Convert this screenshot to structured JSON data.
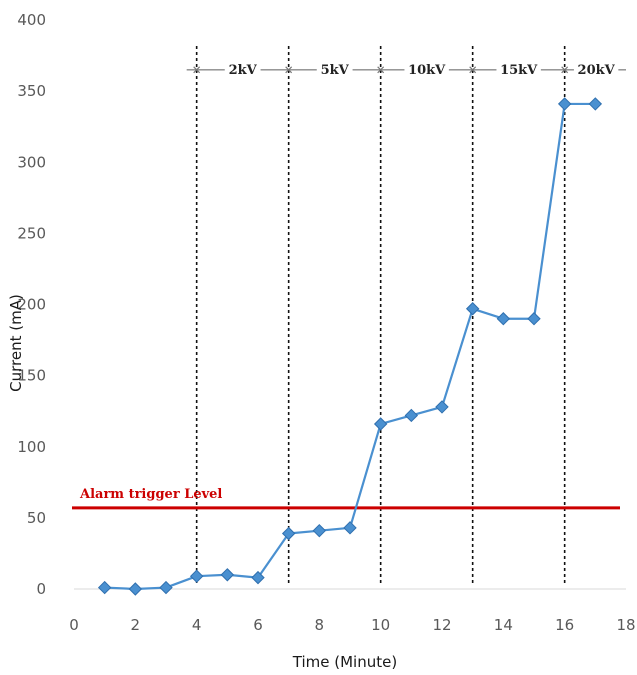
{
  "chart_data": {
    "type": "line",
    "xlabel": "Time (Minute)",
    "ylabel": "Current (mA)",
    "xlim": [
      0,
      18
    ],
    "ylim": [
      0,
      400
    ],
    "x_ticks": [
      0,
      2,
      4,
      6,
      8,
      10,
      12,
      14,
      16,
      18
    ],
    "y_ticks": [
      0,
      50,
      100,
      150,
      200,
      250,
      300,
      350,
      400
    ],
    "grid": false,
    "series": [
      {
        "color": "#4a90d0",
        "marker": "diamond",
        "x": [
          1,
          2,
          3,
          4,
          5,
          6,
          7,
          8,
          9,
          10,
          11,
          12,
          13,
          14,
          15,
          16,
          17
        ],
        "values": [
          1,
          0,
          1,
          9,
          10,
          8,
          39,
          41,
          43,
          116,
          122,
          128,
          197,
          190,
          190,
          341,
          341
        ]
      }
    ],
    "alarm": {
      "label": "Alarm trigger Level",
      "value": 57,
      "color": "#cc0000"
    },
    "phase_boundaries": [
      4,
      7,
      10,
      13,
      16
    ],
    "phase_line_y": 365,
    "phases": [
      {
        "label": "2kV",
        "x_start": 4,
        "x_end": 7
      },
      {
        "label": "5kV",
        "x_start": 7,
        "x_end": 10
      },
      {
        "label": "10kV",
        "x_start": 10,
        "x_end": 13
      },
      {
        "label": "15kV",
        "x_start": 13,
        "x_end": 16
      },
      {
        "label": "20kV",
        "x_start": 16,
        "x_end": 18
      }
    ]
  }
}
